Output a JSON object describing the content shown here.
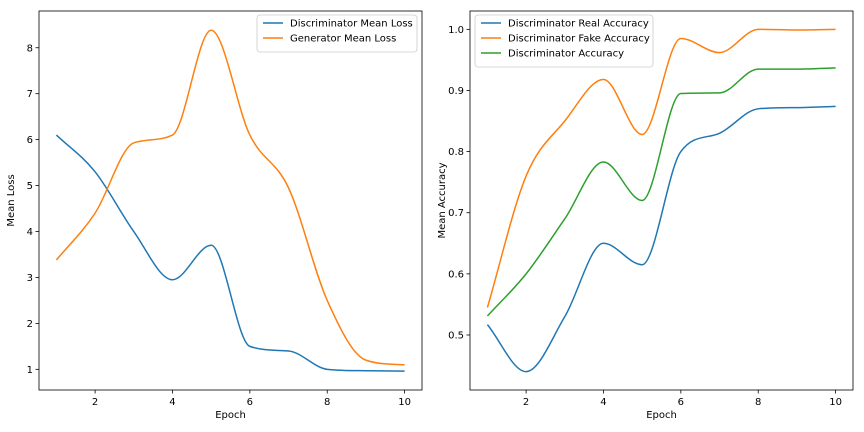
{
  "chart_data": [
    {
      "type": "line",
      "xlabel": "Epoch",
      "ylabel": "Mean Loss",
      "xlim": [
        0.55,
        10.45
      ],
      "ylim": [
        0.55,
        8.8
      ],
      "xticks": [
        2,
        4,
        6,
        8,
        10
      ],
      "yticks": [
        1,
        2,
        3,
        4,
        5,
        6,
        7,
        8
      ],
      "x": [
        1,
        2,
        3,
        4,
        5,
        6,
        7,
        8,
        9,
        10
      ],
      "legend_position": "top-right",
      "grid": false,
      "series": [
        {
          "name": "Discriminator Mean Loss",
          "color": "#1f77b4",
          "values": [
            6.1,
            5.3,
            4.0,
            2.95,
            3.7,
            1.5,
            1.4,
            1.0,
            0.97,
            0.96
          ]
        },
        {
          "name": "Generator Mean Loss",
          "color": "#ff7f0e",
          "values": [
            3.38,
            4.4,
            5.93,
            6.1,
            8.38,
            6.1,
            4.95,
            2.5,
            1.2,
            1.1
          ]
        }
      ]
    },
    {
      "type": "line",
      "xlabel": "Epoch",
      "ylabel": "Mean Accuracy",
      "xlim": [
        0.55,
        10.45
      ],
      "ylim": [
        0.41,
        1.03
      ],
      "xticks": [
        2,
        4,
        6,
        8,
        10
      ],
      "yticks": [
        0.5,
        0.6,
        0.7,
        0.8,
        0.9,
        1.0
      ],
      "ytick_labels": [
        "0.5",
        "0.6",
        "0.7",
        "0.8",
        "0.9",
        "1.0"
      ],
      "x": [
        1,
        2,
        3,
        4,
        5,
        6,
        7,
        8,
        9,
        10
      ],
      "legend_position": "top-left",
      "grid": false,
      "series": [
        {
          "name": "Discriminator Real Accuracy",
          "color": "#1f77b4",
          "values": [
            0.517,
            0.44,
            0.53,
            0.65,
            0.615,
            0.8,
            0.83,
            0.87,
            0.872,
            0.874
          ]
        },
        {
          "name": "Discriminator Fake Accuracy",
          "color": "#ff7f0e",
          "values": [
            0.545,
            0.76,
            0.85,
            0.918,
            0.828,
            0.985,
            0.962,
            1.0,
            0.999,
            1.0
          ]
        },
        {
          "name": "Discriminator Accuracy",
          "color": "#2ca02c",
          "values": [
            0.531,
            0.6,
            0.69,
            0.783,
            0.72,
            0.895,
            0.896,
            0.935,
            0.935,
            0.937
          ]
        }
      ]
    }
  ]
}
